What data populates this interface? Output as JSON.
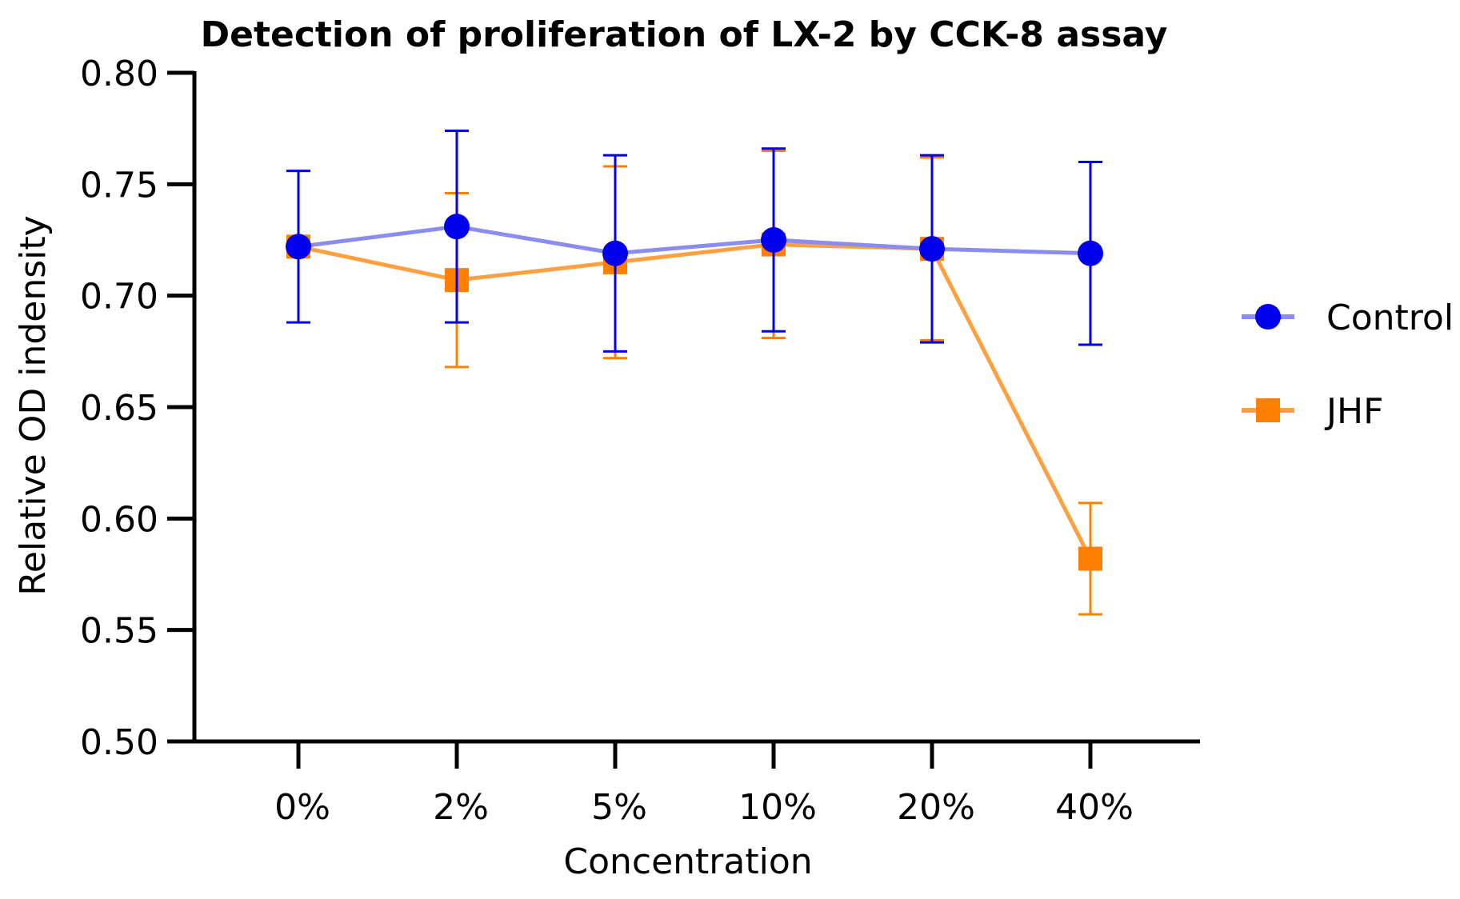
{
  "chart_data": {
    "type": "line",
    "title": "Detection of proliferation of LX-2 by CCK-8 assay",
    "xlabel": "Concentration",
    "ylabel": "Relative OD indensity",
    "categories": [
      "0%",
      "2%",
      "5%",
      "10%",
      "20%",
      "40%"
    ],
    "ylim": [
      0.5,
      0.8
    ],
    "yticks": [
      "0.50",
      "0.55",
      "0.60",
      "0.65",
      "0.70",
      "0.75",
      "0.80"
    ],
    "grid": false,
    "legend_position": "right",
    "series": [
      {
        "name": "Control",
        "color": "#0000ee",
        "line_color": "#8a8cf0",
        "marker": "circle",
        "values": [
          0.722,
          0.731,
          0.719,
          0.725,
          0.721,
          0.719
        ],
        "error": [
          0.034,
          0.043,
          0.044,
          0.041,
          0.042,
          0.041
        ]
      },
      {
        "name": "JHF",
        "color": "#ff8000",
        "line_color": "#ffa040",
        "marker": "square",
        "values": [
          0.722,
          0.707,
          0.715,
          0.723,
          0.721,
          0.582
        ],
        "error": [
          0.004,
          0.039,
          0.043,
          0.042,
          0.041,
          0.025
        ]
      }
    ]
  }
}
